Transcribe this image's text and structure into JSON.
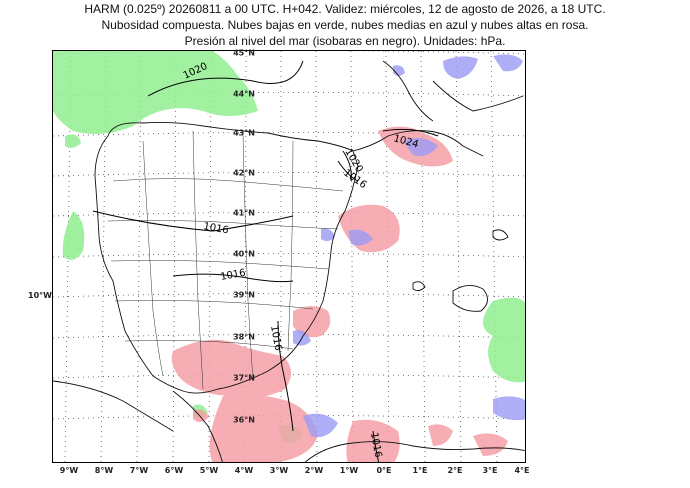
{
  "title": {
    "line1": "HARM (0.025º) 20260811 a 00 UTC. H+042. Validez: miércoles, 12 de agosto de 2026, a 18 UTC.",
    "line2": "Nubosidad compuesta. Nubes bajas en verde, nubes medias en azul y nubes altas en rosa.",
    "line3": "Presión al nivel del mar (isobaras en negro). Unidades: hPa."
  },
  "colors": {
    "low_clouds": "#90ee90",
    "mid_clouds": "#9b9bf5",
    "high_clouds": "#f5a0a8",
    "isobars": "#000000",
    "coast": "#000000"
  },
  "axes": {
    "lon_labels": [
      "9°W",
      "8°W",
      "7°W",
      "6°W",
      "5°W",
      "4°W",
      "3°W",
      "2°W",
      "1°W",
      "0°E",
      "1°E",
      "2°E",
      "3°E",
      "4°E"
    ],
    "lat_labels": [
      "45°N",
      "44°N",
      "43°N",
      "42°N",
      "41°N",
      "40°N",
      "39°N",
      "38°N",
      "37°N",
      "36°N"
    ],
    "side_label": "10°W"
  },
  "isobars": [
    {
      "label": "1020"
    },
    {
      "label": "1016"
    },
    {
      "label": "1016"
    },
    {
      "label": "1024"
    },
    {
      "label": "1020"
    },
    {
      "label": "1016"
    },
    {
      "label": "1016"
    },
    {
      "label": "1016"
    }
  ]
}
